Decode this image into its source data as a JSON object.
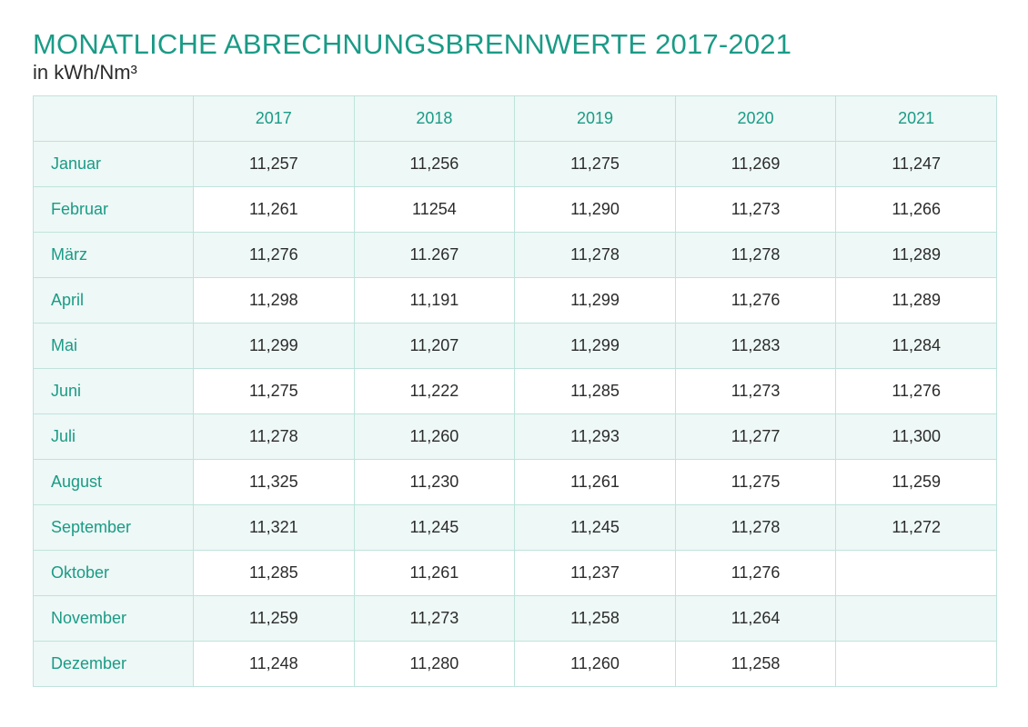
{
  "header": {
    "title": "MONATLICHE ABRECHNUNGSBRENNWERTE 2017-2021",
    "subtitle": "in kWh/Nm³"
  },
  "table": {
    "corner": "",
    "years": [
      "2017",
      "2018",
      "2019",
      "2020",
      "2021"
    ],
    "rows": [
      {
        "month": "Januar",
        "values": [
          "11,257",
          "11,256",
          "11,275",
          "11,269",
          "11,247"
        ]
      },
      {
        "month": "Februar",
        "values": [
          "11,261",
          "11254",
          "11,290",
          "11,273",
          "11,266"
        ]
      },
      {
        "month": "März",
        "values": [
          "11,276",
          "11.267",
          "11,278",
          "11,278",
          "11,289"
        ]
      },
      {
        "month": "April",
        "values": [
          "11,298",
          "11,191",
          "11,299",
          "11,276",
          "11,289"
        ]
      },
      {
        "month": "Mai",
        "values": [
          "11,299",
          "11,207",
          "11,299",
          "11,283",
          "11,284"
        ]
      },
      {
        "month": "Juni",
        "values": [
          "11,275",
          "11,222",
          "11,285",
          "11,273",
          "11,276"
        ]
      },
      {
        "month": "Juli",
        "values": [
          "11,278",
          "11,260",
          "11,293",
          "11,277",
          "11,300"
        ]
      },
      {
        "month": "August",
        "values": [
          "11,325",
          "11,230",
          "11,261",
          "11,275",
          "11,259"
        ]
      },
      {
        "month": "September",
        "values": [
          "11,321",
          "11,245",
          "11,245",
          "11,278",
          "11,272"
        ]
      },
      {
        "month": "Oktober",
        "values": [
          "11,285",
          "11,261",
          "11,237",
          "11,276",
          ""
        ]
      },
      {
        "month": "November",
        "values": [
          "11,259",
          "11,273",
          "11,258",
          "11,264",
          ""
        ]
      },
      {
        "month": "Dezember",
        "values": [
          "11,248",
          "11,280",
          "11,260",
          "11,258",
          ""
        ]
      }
    ]
  },
  "colors": {
    "accent": "#1a9b86",
    "border": "#bfe3dc",
    "tint": "#eef8f6",
    "text": "#2b2b2b"
  }
}
